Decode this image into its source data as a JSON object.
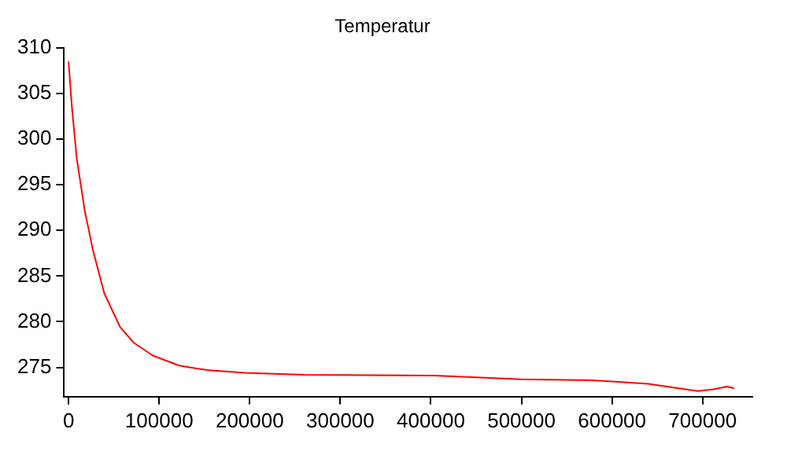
{
  "chart_data": {
    "type": "line",
    "title": "Temperatur",
    "x": [
      0,
      3600,
      9000,
      18000,
      27000,
      39500,
      57000,
      72000,
      93000,
      122000,
      153000,
      194000,
      260000,
      404000,
      500000,
      578000,
      640000,
      668000,
      695000,
      712000,
      727000,
      735000
    ],
    "series": [
      {
        "color": "#ff0000",
        "values": [
          308.5,
          303.6,
          297.9,
          292.1,
          287.8,
          283.1,
          279.4,
          277.7,
          276.3,
          275.2,
          274.7,
          274.4,
          274.2,
          274.1,
          273.7,
          273.6,
          273.2,
          272.8,
          272.4,
          272.6,
          272.9,
          272.7
        ]
      }
    ],
    "xlim": [
      -5000,
      755000
    ],
    "xticks": [
      0,
      100000,
      200000,
      300000,
      400000,
      500000,
      600000,
      700000
    ],
    "ylim": [
      271.8,
      310
    ],
    "yticks": [
      275,
      280,
      285,
      290,
      295,
      300,
      305,
      310
    ],
    "grid": false,
    "legend": false,
    "marker": "none",
    "line_style": "solid"
  }
}
